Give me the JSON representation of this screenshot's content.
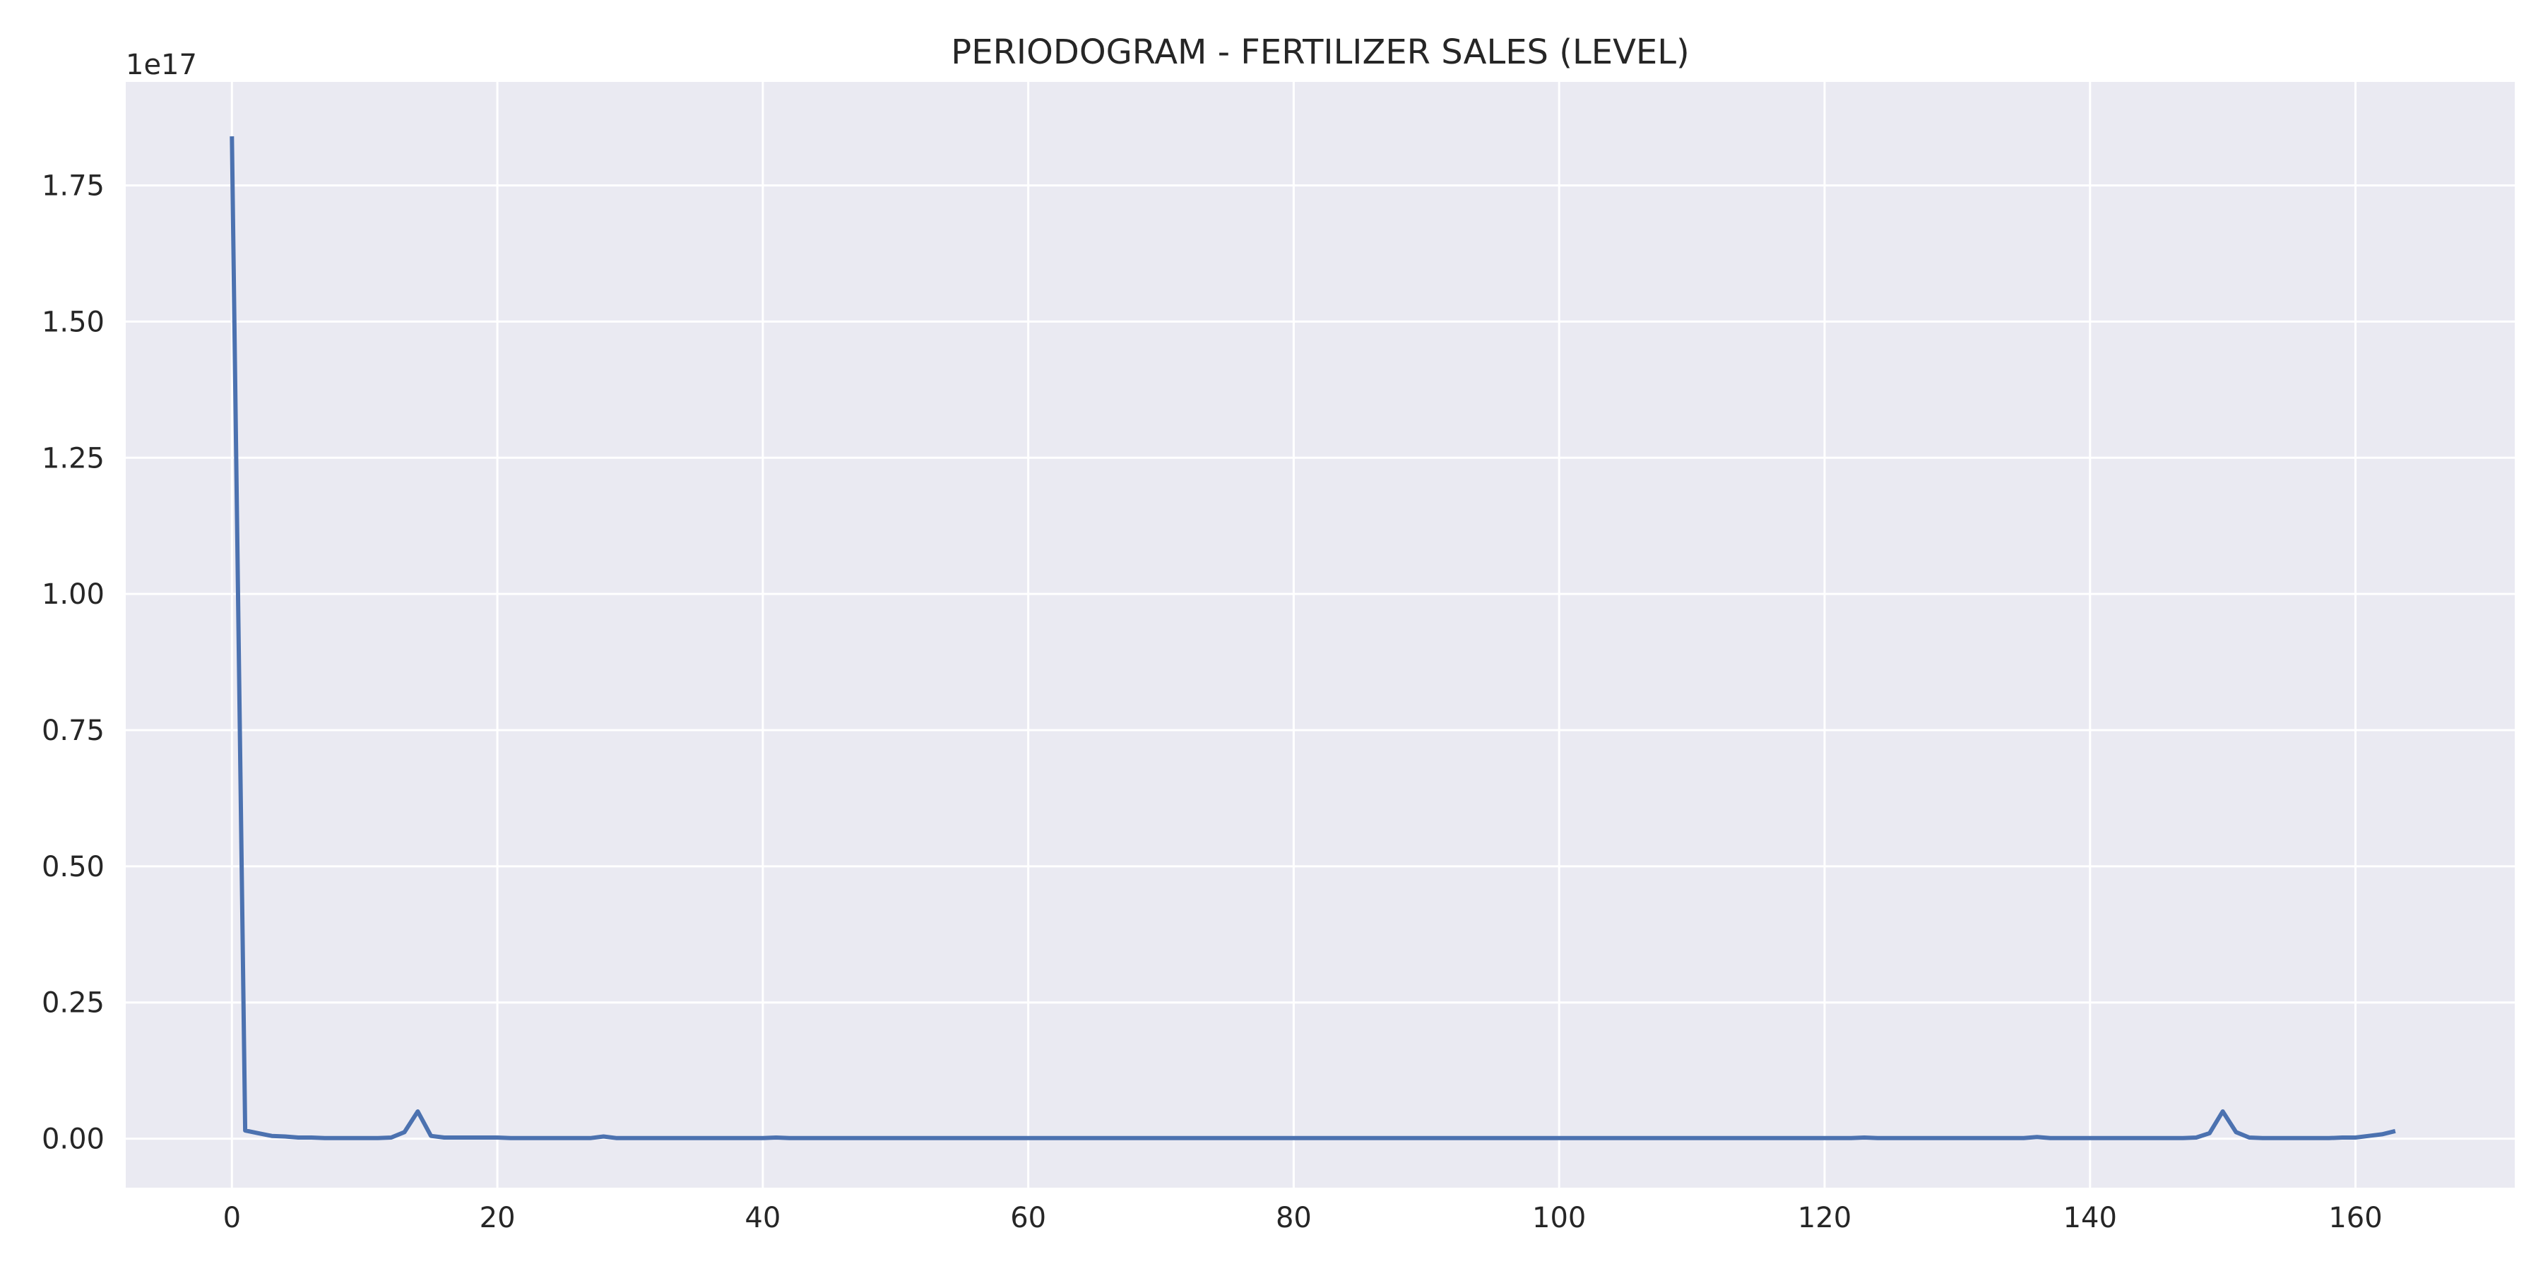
{
  "chart_data": {
    "type": "line",
    "title": "PERIODOGRAM - FERTILIZER SALES (LEVEL)",
    "xlabel": "",
    "ylabel": "",
    "y_offset_label": "1e17",
    "xlim": [
      -8,
      172
    ],
    "ylim": [
      -0.09,
      1.94
    ],
    "y_scale_factor": 1e+17,
    "xticks": [
      0,
      20,
      40,
      60,
      80,
      100,
      120,
      140,
      160
    ],
    "xtick_labels": [
      "0",
      "20",
      "40",
      "60",
      "80",
      "100",
      "120",
      "140",
      "160"
    ],
    "yticks": [
      0.0,
      0.25,
      0.5,
      0.75,
      1.0,
      1.25,
      1.5,
      1.75
    ],
    "ytick_labels": [
      "0.00",
      "0.25",
      "0.50",
      "0.75",
      "1.00",
      "1.25",
      "1.50",
      "1.75"
    ],
    "grid": true,
    "colors": {
      "background": "#eaeaf2",
      "grid": "#ffffff",
      "line": "#4c72b0"
    },
    "series": [
      {
        "x": [
          0,
          1,
          2,
          3,
          4,
          5,
          6,
          7,
          8,
          9,
          10,
          11,
          12,
          13,
          14,
          15,
          16,
          17,
          18,
          19,
          20,
          21,
          22,
          23,
          24,
          25,
          26,
          27,
          28,
          29,
          30,
          31,
          32,
          33,
          34,
          35,
          36,
          37,
          38,
          39,
          40,
          41,
          42,
          43,
          44,
          45,
          46,
          47,
          48,
          49,
          50,
          51,
          52,
          53,
          54,
          55,
          56,
          57,
          58,
          59,
          60,
          61,
          62,
          63,
          64,
          65,
          66,
          67,
          68,
          69,
          70,
          71,
          72,
          73,
          74,
          75,
          76,
          77,
          78,
          79,
          80,
          81,
          82,
          83,
          84,
          85,
          86,
          87,
          88,
          89,
          90,
          91,
          92,
          93,
          94,
          95,
          96,
          97,
          98,
          99,
          100,
          101,
          102,
          103,
          104,
          105,
          106,
          107,
          108,
          109,
          110,
          111,
          112,
          113,
          114,
          115,
          116,
          117,
          118,
          119,
          120,
          121,
          122,
          123,
          124,
          125,
          126,
          127,
          128,
          129,
          130,
          131,
          132,
          133,
          134,
          135,
          136,
          137,
          138,
          139,
          140,
          141,
          142,
          143,
          144,
          145,
          146,
          147,
          148,
          149,
          150,
          151,
          152,
          153,
          154,
          155,
          156,
          157,
          158,
          159,
          160,
          161,
          162,
          163
        ],
        "values": [
          1.84,
          0.015,
          0.01,
          0.005,
          0.004,
          0.002,
          0.002,
          0.001,
          0.001,
          0.001,
          0.001,
          0.001,
          0.002,
          0.012,
          0.05,
          0.005,
          0.002,
          0.002,
          0.002,
          0.002,
          0.002,
          0.001,
          0.001,
          0.001,
          0.001,
          0.001,
          0.001,
          0.001,
          0.004,
          0.001,
          0.001,
          0.001,
          0.001,
          0.001,
          0.001,
          0.001,
          0.001,
          0.001,
          0.001,
          0.001,
          0.001,
          0.002,
          0.001,
          0.001,
          0.001,
          0.001,
          0.001,
          0.001,
          0.001,
          0.001,
          0.001,
          0.001,
          0.001,
          0.001,
          0.001,
          0.001,
          0.001,
          0.001,
          0.001,
          0.001,
          0.001,
          0.001,
          0.001,
          0.001,
          0.001,
          0.001,
          0.001,
          0.001,
          0.001,
          0.001,
          0.001,
          0.001,
          0.001,
          0.001,
          0.001,
          0.001,
          0.001,
          0.001,
          0.001,
          0.001,
          0.001,
          0.001,
          0.001,
          0.001,
          0.001,
          0.001,
          0.001,
          0.001,
          0.001,
          0.001,
          0.001,
          0.001,
          0.001,
          0.001,
          0.001,
          0.001,
          0.001,
          0.001,
          0.001,
          0.001,
          0.001,
          0.001,
          0.001,
          0.001,
          0.001,
          0.001,
          0.001,
          0.001,
          0.001,
          0.001,
          0.001,
          0.001,
          0.001,
          0.001,
          0.001,
          0.001,
          0.001,
          0.001,
          0.001,
          0.001,
          0.001,
          0.001,
          0.001,
          0.002,
          0.001,
          0.001,
          0.001,
          0.001,
          0.001,
          0.001,
          0.001,
          0.001,
          0.001,
          0.001,
          0.001,
          0.001,
          0.003,
          0.001,
          0.001,
          0.001,
          0.001,
          0.001,
          0.001,
          0.001,
          0.001,
          0.001,
          0.001,
          0.001,
          0.002,
          0.01,
          0.05,
          0.012,
          0.002,
          0.001,
          0.001,
          0.001,
          0.001,
          0.001,
          0.001,
          0.002,
          0.002,
          0.005,
          0.008,
          0.014
        ]
      }
    ]
  }
}
